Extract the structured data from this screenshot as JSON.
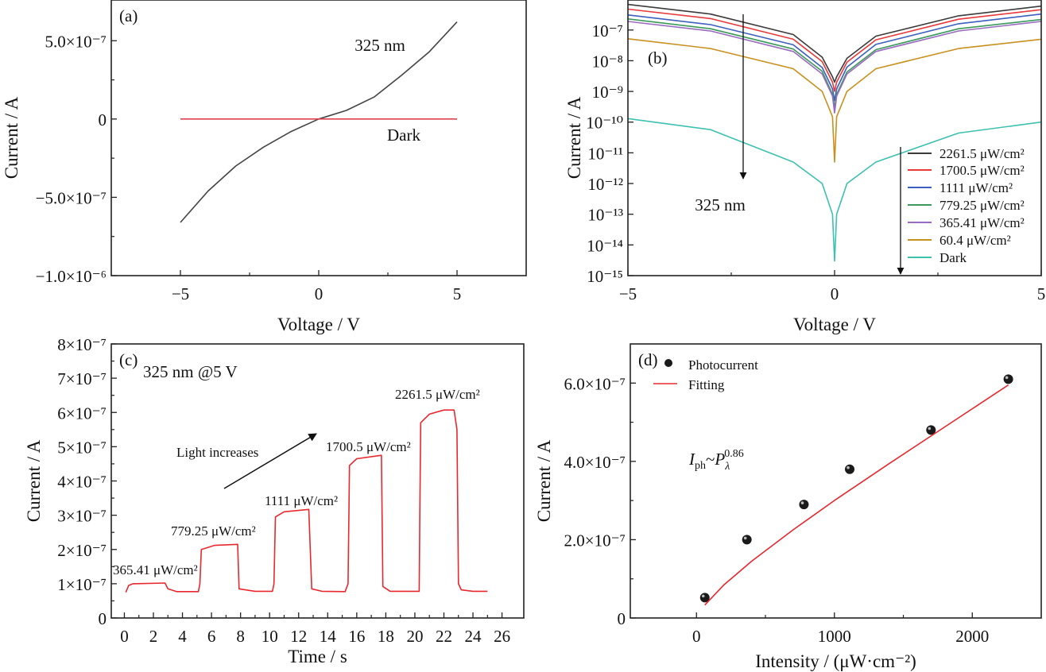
{
  "chart_data": [
    {
      "panel": "(a)",
      "type": "line",
      "xlabel": "Voltage / V",
      "ylabel": "Current / A",
      "xlim": [
        -7.5,
        7.5
      ],
      "ylim": [
        -1e-06,
        7.6e-07
      ],
      "xticks": [
        -5,
        0,
        5
      ],
      "xtick_labels": [
        "−5",
        "0",
        "5"
      ],
      "yticks": [
        -1e-06,
        -5e-07,
        0,
        5e-07
      ],
      "ytick_labels": [
        "−1.0×10⁻⁶",
        "−5.0×10⁻⁷",
        "0",
        "5.0×10⁻⁷"
      ],
      "grid": false,
      "annotations": [
        "325 nm",
        "Dark"
      ],
      "series": [
        {
          "name": "325 nm",
          "color": "#444444",
          "x": [
            -5,
            -4,
            -3,
            -2,
            -1,
            0,
            1,
            2,
            3,
            4,
            5
          ],
          "y": [
            -6.6e-07,
            -4.6e-07,
            -3e-07,
            -1.8e-07,
            -8e-08,
            0,
            5.5e-08,
            1.4e-07,
            2.8e-07,
            4.3e-07,
            6.2e-07
          ]
        },
        {
          "name": "Dark",
          "color": "#e04050",
          "x": [
            -5,
            5
          ],
          "y": [
            0,
            0
          ]
        }
      ]
    },
    {
      "panel": "(b)",
      "type": "line",
      "xlabel": "Voltage / V",
      "ylabel": "Current / A",
      "yscale": "log",
      "xlim": [
        -5,
        5
      ],
      "ylim": [
        1e-15,
        9.5e-07
      ],
      "xticks": [
        -5,
        0,
        5
      ],
      "xtick_labels": [
        "−5",
        "0",
        "5"
      ],
      "yticks": [
        1e-15,
        1e-14,
        1e-13,
        1e-12,
        1e-11,
        1e-10,
        1e-09,
        1e-08,
        1e-07
      ],
      "ytick_labels": [
        "10⁻¹⁵",
        "10⁻¹⁴",
        "10⁻¹³",
        "10⁻¹²",
        "10⁻¹¹",
        "10⁻¹⁰",
        "10⁻⁹",
        "10⁻⁸",
        "10⁻⁷"
      ],
      "grid": false,
      "legend_position": "bottom-right",
      "annotations": [
        "325 nm"
      ],
      "x": [
        -5,
        -3,
        -1,
        -0.3,
        -0.05,
        0,
        0.05,
        0.3,
        1,
        3,
        5
      ],
      "series": [
        {
          "name": "2261.5 μW/cm²",
          "color": "#3a3a3a",
          "values": [
            6.8e-07,
            3.3e-07,
            7.1e-08,
            1.3e-08,
            3e-09,
            2e-09,
            3e-09,
            1.2e-08,
            6.3e-08,
            2.9e-07,
            6e-07
          ]
        },
        {
          "name": "1700.5 μW/cm²",
          "color": "#e8383a",
          "values": [
            4.8e-07,
            2.35e-07,
            5e-08,
            9.4e-09,
            2e-09,
            1e-09,
            2e-09,
            9e-09,
            4.8e-08,
            2.25e-07,
            4.6e-07
          ]
        },
        {
          "name": "1111 μW/cm²",
          "color": "#3a5fbf",
          "values": [
            3.1e-07,
            1.5e-07,
            3.3e-08,
            6e-09,
            1.2e-09,
            5e-10,
            1.2e-09,
            6.2e-09,
            3.4e-08,
            1.6e-07,
            3.3e-07
          ]
        },
        {
          "name": "779.25 μW/cm²",
          "color": "#3a9a5a",
          "values": [
            2.3e-07,
            1.1e-07,
            2.4e-08,
            4.5e-09,
            8e-10,
            3e-10,
            8e-10,
            4.3e-09,
            2.3e-08,
            1.1e-07,
            2.2e-07
          ]
        },
        {
          "name": "365.41 μW/cm²",
          "color": "#9a6ac0",
          "values": [
            1.9e-07,
            9.3e-08,
            2e-08,
            3.7e-09,
            7e-10,
            2e-10,
            7e-10,
            3.7e-09,
            2e-08,
            9.3e-08,
            1.9e-07
          ]
        },
        {
          "name": "60.4 μW/cm²",
          "color": "#c8901e",
          "values": [
            5.2e-08,
            2.5e-08,
            5.5e-09,
            1e-09,
            1.5e-10,
            5e-12,
            1.5e-10,
            1e-09,
            5.5e-09,
            2.5e-08,
            5e-08
          ]
        },
        {
          "name": "Dark",
          "color": "#3ec0b0",
          "values": [
            1.3e-10,
            5.7e-11,
            5e-12,
            1e-12,
            1e-13,
            3e-15,
            1e-13,
            1e-12,
            5e-12,
            4.4e-11,
            1e-10
          ]
        }
      ]
    },
    {
      "panel": "(c)",
      "type": "line",
      "xlabel": "Time / s",
      "ylabel": "Current / A",
      "xlim": [
        -0.9,
        27.5
      ],
      "ylim": [
        0,
        8e-07
      ],
      "xticks": [
        0,
        2,
        4,
        6,
        8,
        10,
        12,
        14,
        16,
        18,
        20,
        22,
        24,
        26
      ],
      "xtick_labels": [
        "0",
        "2",
        "4",
        "6",
        "8",
        "10",
        "12",
        "14",
        "16",
        "18",
        "20",
        "22",
        "24",
        "26"
      ],
      "yticks": [
        0,
        1e-07,
        2e-07,
        3e-07,
        4e-07,
        5e-07,
        6e-07,
        7e-07,
        8e-07
      ],
      "ytick_labels": [
        "0",
        "1×10⁻⁷",
        "2×10⁻⁷",
        "3×10⁻⁷",
        "4×10⁻⁷",
        "5×10⁻⁷",
        "6×10⁻⁷",
        "7×10⁻⁷",
        "8×10⁻⁷"
      ],
      "grid": false,
      "subtitle": "325 nm @5 V",
      "arrow_label": "Light increases",
      "annotations": [
        "365.41 μW/cm²",
        "779.25 μW/cm²",
        "1111 μW/cm²",
        "1700.5 μW/cm²",
        "2261.5 μW/cm²"
      ],
      "series": [
        {
          "color": "#e8282e",
          "x": [
            0.1,
            0.3,
            0.6,
            2.8,
            3.0,
            3.6,
            5.1,
            5.2,
            5.3,
            6.2,
            7.8,
            7.9,
            9.0,
            10.2,
            10.3,
            10.4,
            11.0,
            12.7,
            12.9,
            13.6,
            15.2,
            15.4,
            15.5,
            16.0,
            17.7,
            17.8,
            18.3,
            20.3,
            20.35,
            20.4,
            21.0,
            22.0,
            22.7,
            22.9,
            23.0,
            23.2,
            24.0,
            25.0
          ],
          "y": [
            7.5e-08,
            9.5e-08,
            1e-07,
            1.02e-07,
            8.5e-08,
            7.7e-08,
            7.7e-08,
            1e-07,
            2e-07,
            2.12e-07,
            2.15e-07,
            8.5e-08,
            7.8e-08,
            7.8e-08,
            1e-07,
            2.95e-07,
            3.1e-07,
            3.17e-07,
            8.5e-08,
            7.8e-08,
            7.7e-08,
            1e-07,
            4.45e-07,
            4.65e-07,
            4.75e-07,
            9.2e-08,
            7.8e-08,
            7.8e-08,
            3.3e-07,
            5.7e-07,
            5.95e-07,
            6.07e-07,
            6.07e-07,
            5.5e-07,
            1e-07,
            8.2e-08,
            7.8e-08,
            7.8e-08
          ]
        }
      ]
    },
    {
      "panel": "(d)",
      "type": "scatter",
      "xlabel": "Intensity / (μW·cm⁻²)",
      "ylabel": "Current / A",
      "xlim": [
        -480,
        2500
      ],
      "ylim": [
        0,
        7e-07
      ],
      "xticks": [
        0,
        1000,
        2000
      ],
      "xtick_labels": [
        "0",
        "1000",
        "2000"
      ],
      "yticks": [
        0,
        2e-07,
        4e-07,
        6e-07
      ],
      "ytick_labels": [
        "0",
        "2.0×10⁻⁷",
        "4.0×10⁻⁷",
        "6.0×10⁻⁷"
      ],
      "grid": false,
      "legend_position": "top-left",
      "formula": {
        "I": "I",
        "sub1": "ph",
        "tilde": "~",
        "P": "P",
        "sub2": "λ",
        "sup": "0.86"
      },
      "series": [
        {
          "name": "Photocurrent",
          "color": "#1a1a1a",
          "x": [
            60.4,
            365.41,
            779.25,
            1111,
            1700.5,
            2261.5
          ],
          "y": [
            5.2e-08,
            2e-07,
            2.9e-07,
            3.8e-07,
            4.8e-07,
            6.1e-07
          ]
        },
        {
          "name": "Fitting",
          "color": "#e8282e",
          "x": [
            60,
            200,
            400,
            700,
            1000,
            1400,
            1800,
            2261.5
          ],
          "y": [
            3.3e-08,
            8.5e-08,
            1.45e-07,
            2.25e-07,
            3e-07,
            3.95e-07,
            4.88e-07,
            5.95e-07
          ]
        }
      ]
    }
  ]
}
